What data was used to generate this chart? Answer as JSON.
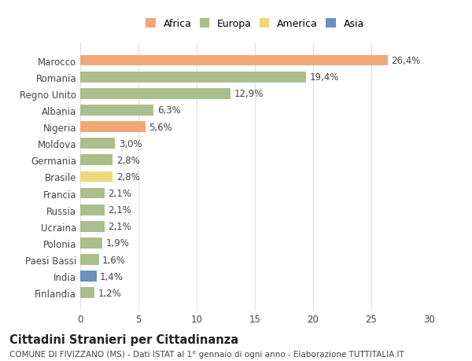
{
  "countries": [
    "Marocco",
    "Romania",
    "Regno Unito",
    "Albania",
    "Nigeria",
    "Moldova",
    "Germania",
    "Brasile",
    "Francia",
    "Russia",
    "Ucraina",
    "Polonia",
    "Paesi Bassi",
    "India",
    "Finlandia"
  ],
  "values": [
    26.4,
    19.4,
    12.9,
    6.3,
    5.6,
    3.0,
    2.8,
    2.8,
    2.1,
    2.1,
    2.1,
    1.9,
    1.6,
    1.4,
    1.2
  ],
  "continents": [
    "Africa",
    "Europa",
    "Europa",
    "Europa",
    "Africa",
    "Europa",
    "Europa",
    "America",
    "Europa",
    "Europa",
    "Europa",
    "Europa",
    "Europa",
    "Asia",
    "Europa"
  ],
  "colors": {
    "Africa": "#F0A878",
    "Europa": "#AABF8C",
    "America": "#F0D878",
    "Asia": "#6A8FC0"
  },
  "legend_order": [
    "Africa",
    "Europa",
    "America",
    "Asia"
  ],
  "legend_colors": {
    "Africa": "#F0A878",
    "Europa": "#AABF8C",
    "America": "#F0D878",
    "Asia": "#6A8FC0"
  },
  "title": "Cittadini Stranieri per Cittadinanza",
  "subtitle": "COMUNE DI FIVIZZANO (MS) - Dati ISTAT al 1° gennaio di ogni anno - Elaborazione TUTTITALIA.IT",
  "xlim": [
    0,
    30
  ],
  "xticks": [
    0,
    5,
    10,
    15,
    20,
    25,
    30
  ],
  "bar_height": 0.65,
  "background_color": "#ffffff",
  "grid_color": "#e0e0e0",
  "text_color": "#444444",
  "label_fontsize": 8.5,
  "tick_fontsize": 8.5,
  "title_fontsize": 10.5,
  "subtitle_fontsize": 7.5
}
